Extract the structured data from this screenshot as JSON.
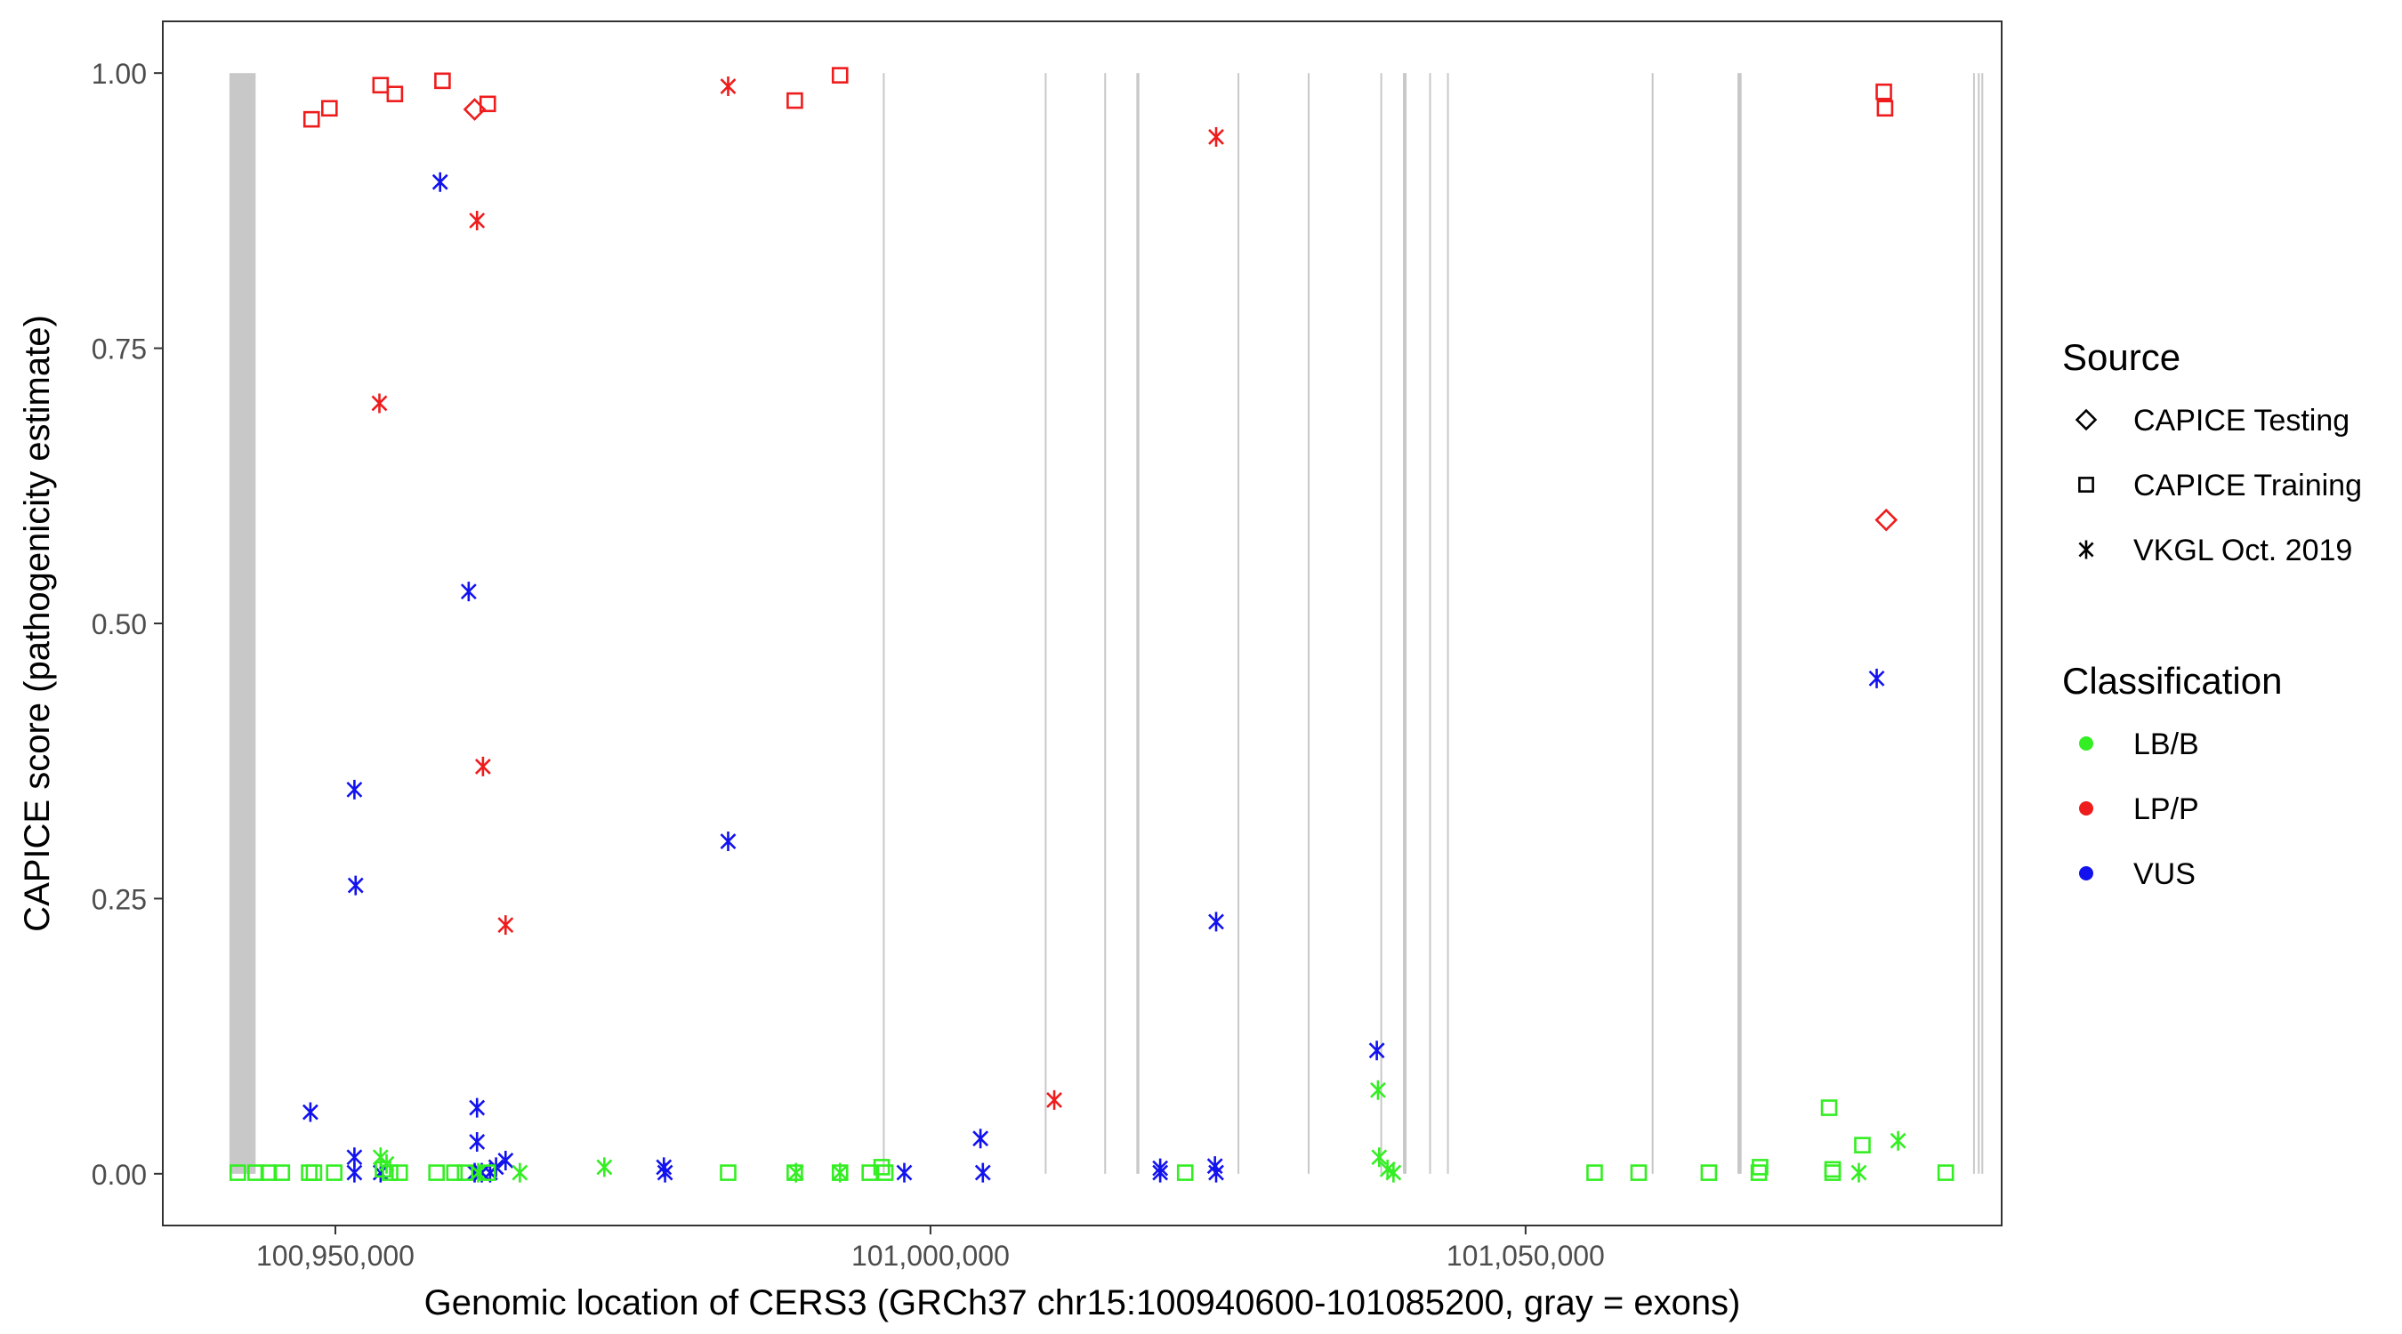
{
  "chart_data": {
    "type": "scatter",
    "title": "",
    "xlabel": "Genomic location of CERS3 (GRCh37 chr15:100940600-101085200, gray = exons)",
    "ylabel": "CAPICE score (pathogenicity estimate)",
    "xlim": [
      100935500,
      101090000
    ],
    "ylim": [
      -0.047,
      1.047
    ],
    "x_ticks": [
      100950000,
      101000000,
      101050000
    ],
    "x_tick_labels": [
      "100,950,000",
      "101,000,000",
      "101,050,000"
    ],
    "y_ticks": [
      0.0,
      0.25,
      0.5,
      0.75,
      1.0
    ],
    "y_tick_labels": [
      "0.00",
      "0.25",
      "0.50",
      "0.75",
      "1.00"
    ],
    "grid": false,
    "exons": [
      [
        100941100,
        100943300
      ],
      [
        100996000,
        100996150
      ],
      [
        101009600,
        101009750
      ],
      [
        101014600,
        101014750
      ],
      [
        101017300,
        101017550
      ],
      [
        101025800,
        101025950
      ],
      [
        101031700,
        101031850
      ],
      [
        101037800,
        101037950
      ],
      [
        101039700,
        101040000
      ],
      [
        101041900,
        101042050
      ],
      [
        101043400,
        101043550
      ],
      [
        101060600,
        101060750
      ],
      [
        101067800,
        101068150
      ],
      [
        101087600,
        101087750
      ],
      [
        101088000,
        101088150
      ],
      [
        101088300,
        101088450
      ]
    ],
    "exon_color": "#c8c8c8",
    "legend": {
      "position": "right",
      "source_title": "Source",
      "source_items": [
        {
          "label": "CAPICE Testing",
          "shape": "diamond"
        },
        {
          "label": "CAPICE Training",
          "shape": "square"
        },
        {
          "label": "VKGL Oct. 2019",
          "shape": "asterisk"
        }
      ],
      "class_title": "Classification",
      "class_items": [
        {
          "label": "LB/B",
          "color": "#33ee22"
        },
        {
          "label": "LP/P",
          "color": "#ee1c1c"
        },
        {
          "label": "VUS",
          "color": "#1212ee"
        }
      ]
    },
    "series": [
      {
        "source": "CAPICE Testing",
        "classification": "LP/P",
        "points": [
          [
            100961700,
            0.967
          ],
          [
            101080300,
            0.594
          ]
        ]
      },
      {
        "source": "CAPICE Training",
        "classification": "LP/P",
        "points": [
          [
            100948000,
            0.958
          ],
          [
            100949500,
            0.968
          ],
          [
            100953800,
            0.989
          ],
          [
            100955000,
            0.981
          ],
          [
            100959000,
            0.993
          ],
          [
            100962800,
            0.972
          ],
          [
            100988600,
            0.975
          ],
          [
            100992400,
            0.998
          ],
          [
            101080100,
            0.983
          ],
          [
            101080200,
            0.968
          ]
        ]
      },
      {
        "source": "VKGL Oct. 2019",
        "classification": "LP/P",
        "points": [
          [
            100983000,
            0.988
          ],
          [
            101024000,
            0.942
          ],
          [
            100961900,
            0.866
          ],
          [
            100953700,
            0.7
          ],
          [
            100962400,
            0.37
          ],
          [
            100964300,
            0.226
          ],
          [
            101010400,
            0.067
          ]
        ]
      },
      {
        "source": "VKGL Oct. 2019",
        "classification": "VUS",
        "points": [
          [
            100958800,
            0.901
          ],
          [
            100961200,
            0.529
          ],
          [
            100951600,
            0.349
          ],
          [
            100951700,
            0.262
          ],
          [
            100983000,
            0.302
          ],
          [
            101024000,
            0.229
          ],
          [
            101037500,
            0.112
          ],
          [
            101079500,
            0.45
          ],
          [
            100947900,
            0.056
          ],
          [
            100961900,
            0.06
          ],
          [
            100961900,
            0.029
          ],
          [
            100951600,
            0.015
          ],
          [
            100964300,
            0.012
          ],
          [
            101004200,
            0.032
          ],
          [
            100963500,
            0.006
          ],
          [
            100977600,
            0.006
          ],
          [
            101019300,
            0.005
          ],
          [
            101023900,
            0.007
          ],
          [
            100951600,
            0.001
          ],
          [
            100953800,
            0.001
          ],
          [
            100961700,
            0.001
          ],
          [
            100962300,
            0.001
          ],
          [
            100963000,
            0.001
          ],
          [
            100977700,
            0.001
          ],
          [
            100997800,
            0.001
          ],
          [
            101004400,
            0.001
          ],
          [
            101019300,
            0.001
          ],
          [
            101024000,
            0.001
          ]
        ]
      },
      {
        "source": "VKGL Oct. 2019",
        "classification": "LB/B",
        "points": [
          [
            101037600,
            0.076
          ],
          [
            101081300,
            0.03
          ],
          [
            101037700,
            0.015
          ],
          [
            100953800,
            0.015
          ],
          [
            100954300,
            0.009
          ],
          [
            100972600,
            0.006
          ],
          [
            101038400,
            0.004
          ],
          [
            100962000,
            0.001
          ],
          [
            100965500,
            0.001
          ],
          [
            100988700,
            0.001
          ],
          [
            100992400,
            0.001
          ],
          [
            101038900,
            0.001
          ],
          [
            101078000,
            0.001
          ]
        ]
      },
      {
        "source": "CAPICE Training",
        "classification": "LB/B",
        "points": [
          [
            101075500,
            0.06
          ],
          [
            101078300,
            0.026
          ],
          [
            100954000,
            0.004
          ],
          [
            100995900,
            0.006
          ],
          [
            101069700,
            0.006
          ],
          [
            101075800,
            0.004
          ],
          [
            100941800,
            0.001
          ],
          [
            100943300,
            0.001
          ],
          [
            100944400,
            0.001
          ],
          [
            100945500,
            0.001
          ],
          [
            100947800,
            0.001
          ],
          [
            100948200,
            0.001
          ],
          [
            100949900,
            0.001
          ],
          [
            100954600,
            0.001
          ],
          [
            100955400,
            0.001
          ],
          [
            100958500,
            0.001
          ],
          [
            100960000,
            0.001
          ],
          [
            100960900,
            0.001
          ],
          [
            100962800,
            0.001
          ],
          [
            100983000,
            0.001
          ],
          [
            100988600,
            0.001
          ],
          [
            100992400,
            0.001
          ],
          [
            100994900,
            0.001
          ],
          [
            100996200,
            0.001
          ],
          [
            101021400,
            0.001
          ],
          [
            101055800,
            0.001
          ],
          [
            101059500,
            0.001
          ],
          [
            101065400,
            0.001
          ],
          [
            101069600,
            0.001
          ],
          [
            101075800,
            0.001
          ],
          [
            101085300,
            0.001
          ]
        ]
      }
    ]
  }
}
